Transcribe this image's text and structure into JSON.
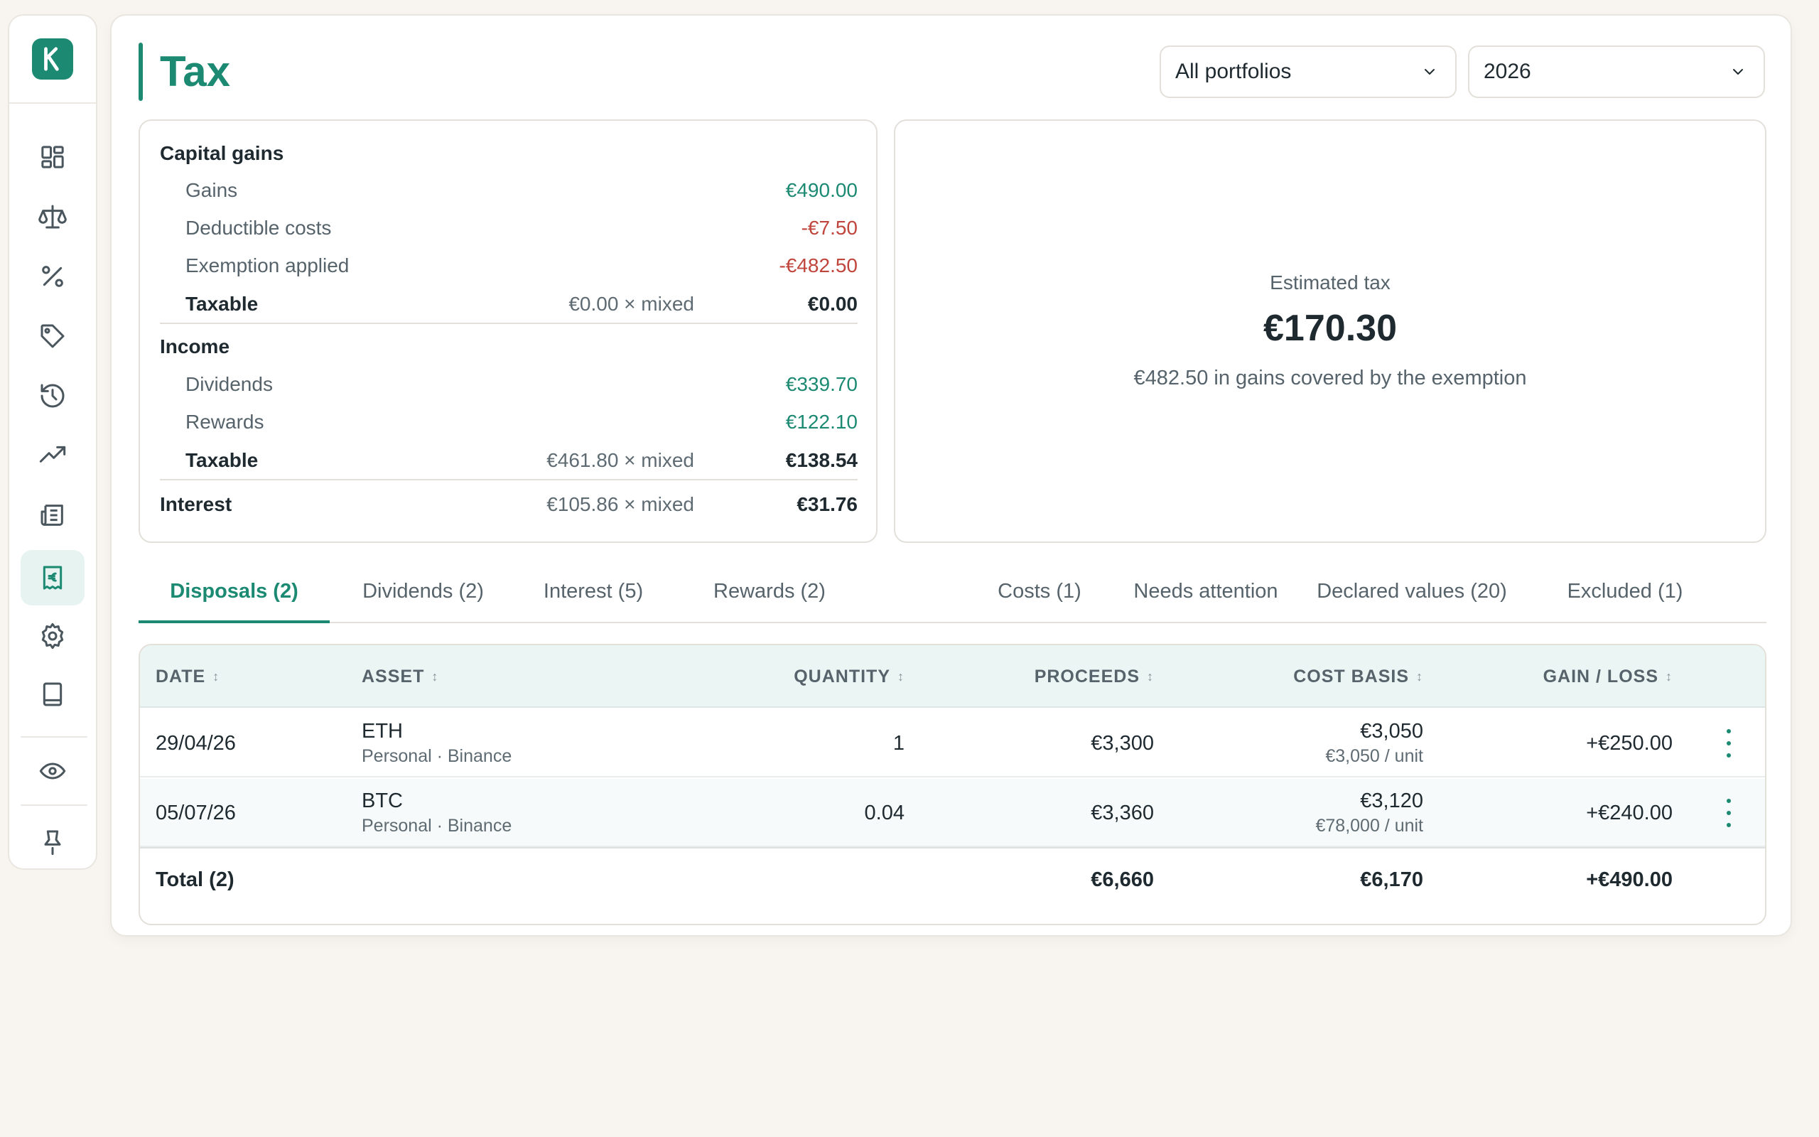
{
  "page": {
    "title": "Tax"
  },
  "filters": {
    "portfolio": "All portfolios",
    "year": "2026"
  },
  "sidebar": {
    "logo_letter": "K",
    "items": [
      {
        "icon": "dashboard-icon"
      },
      {
        "icon": "scale-icon"
      },
      {
        "icon": "percent-icon"
      },
      {
        "icon": "tag-icon"
      },
      {
        "icon": "history-icon"
      },
      {
        "icon": "trending-up-icon"
      },
      {
        "icon": "newspaper-icon"
      },
      {
        "icon": "euro-receipt-icon",
        "active": true
      },
      {
        "icon": "gear-icon"
      },
      {
        "icon": "book-icon"
      },
      {
        "icon": "eye-icon"
      },
      {
        "icon": "pin-icon"
      }
    ]
  },
  "summary": {
    "capital_gains": {
      "heading": "Capital gains",
      "gains_label": "Gains",
      "gains_value": "€490.00",
      "costs_label": "Deductible costs",
      "costs_value": "-€7.50",
      "exemption_label": "Exemption applied",
      "exemption_value": "-€482.50",
      "taxable_label": "Taxable",
      "taxable_mid": "€0.00 × mixed",
      "taxable_value": "€0.00"
    },
    "income": {
      "heading": "Income",
      "dividends_label": "Dividends",
      "dividends_value": "€339.70",
      "rewards_label": "Rewards",
      "rewards_value": "€122.10",
      "taxable_label": "Taxable",
      "taxable_mid": "€461.80 × mixed",
      "taxable_value": "€138.54"
    },
    "interest": {
      "label": "Interest",
      "mid": "€105.86 × mixed",
      "value": "€31.76"
    }
  },
  "estimate": {
    "label": "Estimated tax",
    "value": "€170.30",
    "note": "€482.50 in gains covered by the exemption"
  },
  "tabs": [
    {
      "label": "Disposals (2)",
      "active": true
    },
    {
      "label": "Dividends (2)"
    },
    {
      "label": "Interest (5)"
    },
    {
      "label": "Rewards (2)"
    },
    {
      "label": "Costs (1)"
    },
    {
      "label": "Needs attention"
    },
    {
      "label": "Declared values (20)"
    },
    {
      "label": "Excluded (1)"
    }
  ],
  "table": {
    "headers": {
      "date": "DATE",
      "asset": "ASSET",
      "quantity": "QUANTITY",
      "proceeds": "PROCEEDS",
      "cost_basis": "COST BASIS",
      "gain_loss": "GAIN / LOSS"
    },
    "rows": [
      {
        "date": "29/04/26",
        "asset": "ETH",
        "asset_sub": "Personal · Binance",
        "quantity": "1",
        "proceeds": "€3,300",
        "cost_basis": "€3,050",
        "cost_sub": "€3,050 / unit",
        "gain": "+€250.00"
      },
      {
        "date": "05/07/26",
        "asset": "BTC",
        "asset_sub": "Personal · Binance",
        "quantity": "0.04",
        "proceeds": "€3,360",
        "cost_basis": "€3,120",
        "cost_sub": "€78,000 / unit",
        "gain": "+€240.00"
      }
    ],
    "total": {
      "label": "Total (2)",
      "proceeds": "€6,660",
      "cost_basis": "€6,170",
      "gain": "+€490.00"
    }
  }
}
